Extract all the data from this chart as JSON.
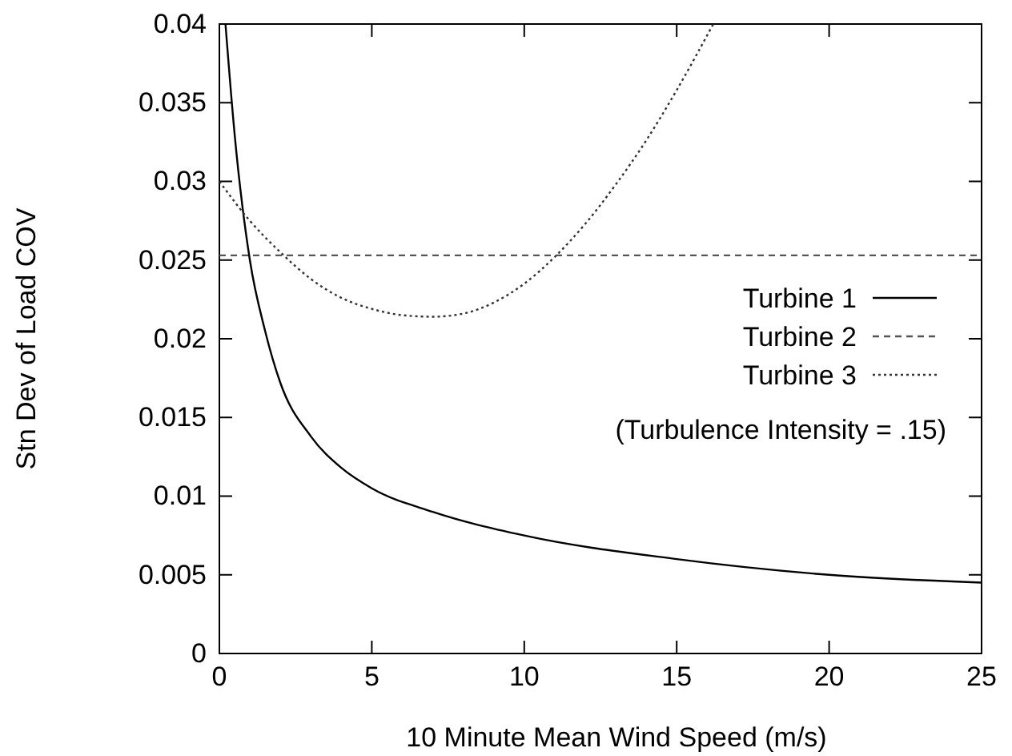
{
  "chart_data": {
    "type": "line",
    "xlabel": "10 Minute Mean Wind Speed (m/s)",
    "ylabel": "Stn Dev of Load COV",
    "xlim": [
      0,
      25
    ],
    "xticks": [
      0,
      5,
      10,
      15,
      20,
      25
    ],
    "ylim": [
      0,
      0.04
    ],
    "yticks": [
      0,
      0.005,
      0.01,
      0.015,
      0.02,
      0.025,
      0.03,
      0.035,
      0.04
    ],
    "legend": "right",
    "grid": false,
    "annotations": [
      "(Turbulence Intensity = .15)"
    ],
    "series": [
      {
        "name": "Turbine 1",
        "color": "#000000",
        "line_style": "solid",
        "x": [
          0.2,
          0.5,
          1,
          1.5,
          2,
          3,
          4,
          5,
          7,
          10,
          15,
          20,
          25
        ],
        "values": [
          0.04,
          0.033,
          0.025,
          0.0205,
          0.0172,
          0.0138,
          0.0118,
          0.0105,
          0.009,
          0.0075,
          0.006,
          0.005,
          0.0045
        ]
      },
      {
        "name": "Turbine 2",
        "color": "#555555",
        "line_style": "dashed",
        "x": [
          0,
          25
        ],
        "values": [
          0.0253,
          0.0253
        ]
      },
      {
        "name": "Turbine 3",
        "color": "#333333",
        "line_style": "dotted",
        "x": [
          0,
          1,
          2,
          3,
          4,
          5,
          6,
          7,
          8,
          9,
          10,
          11,
          12,
          13,
          14,
          15,
          16.2
        ],
        "values": [
          0.03,
          0.0275,
          0.0255,
          0.0238,
          0.0226,
          0.0219,
          0.0215,
          0.0214,
          0.0216,
          0.0223,
          0.0235,
          0.0252,
          0.0273,
          0.0298,
          0.0326,
          0.0358,
          0.04
        ]
      }
    ]
  }
}
